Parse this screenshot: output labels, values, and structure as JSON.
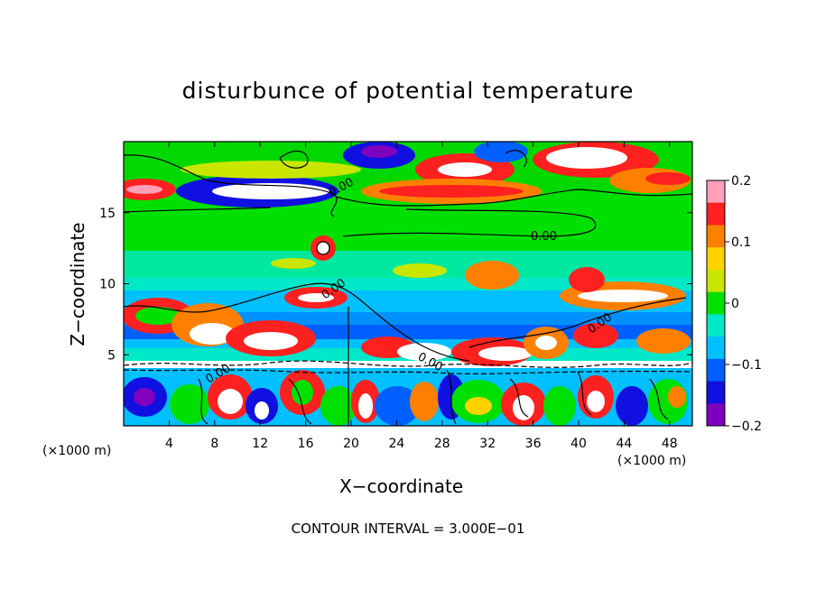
{
  "chart_data": {
    "type": "heatmap",
    "title": "disturbunce of potential temperature",
    "xlabel": "X−coordinate",
    "ylabel": "Z−coordinate",
    "x_unit": "(×1000 m)",
    "x_ticks": [
      "4",
      "8",
      "12",
      "16",
      "20",
      "24",
      "28",
      "32",
      "36",
      "40",
      "44",
      "48"
    ],
    "y_ticks": [
      "5",
      "10",
      "15"
    ],
    "xlim": [
      0,
      50
    ],
    "ylim": [
      0,
      20
    ],
    "colorbar": {
      "range": [
        -0.2,
        0.2
      ],
      "ticks": [
        "0.2",
        "0.1",
        "0",
        "−0.1",
        "−0.2"
      ],
      "colors": [
        "#ff9fb8",
        "#ff2020",
        "#ff8000",
        "#ffd200",
        "#c8e600",
        "#00e000",
        "#00e8c8",
        "#00c0ff",
        "#0060ff",
        "#1010e0",
        "#8000c0"
      ]
    },
    "contour_labels": [
      "0.00",
      "0.00",
      "0.00",
      "0.00",
      "0.00",
      "0.00"
    ],
    "footer": "CONTOUR INTERVAL = 3.000E−01"
  }
}
